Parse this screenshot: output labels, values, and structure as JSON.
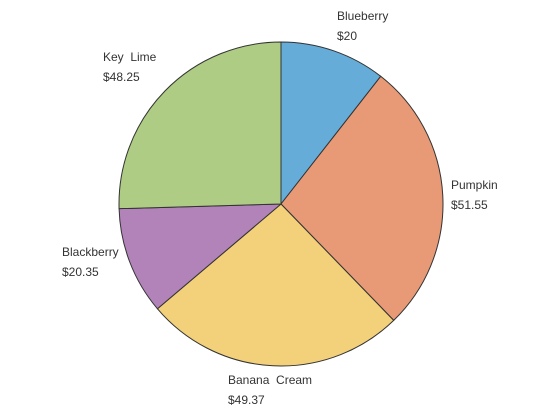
{
  "chart_data": {
    "type": "pie",
    "title": "",
    "currency_prefix": "$",
    "slices": [
      {
        "name": "Blueberry",
        "value": 20,
        "display_value": "$20",
        "color": "#65acd9"
      },
      {
        "name": "Pumpkin",
        "value": 51.55,
        "display_value": "$51.55",
        "color": "#e89a77"
      },
      {
        "name": "Banana  Cream",
        "value": 49.37,
        "display_value": "$49.37",
        "color": "#f3d07a"
      },
      {
        "name": "Blackberry",
        "value": 20.35,
        "display_value": "$20.35",
        "color": "#b283b9"
      },
      {
        "name": "Key  Lime",
        "value": 48.25,
        "display_value": "$48.25",
        "color": "#aecc84"
      }
    ],
    "start_angle": "12 o'clock",
    "direction": "clockwise",
    "slice_border_color": "#333333",
    "legend": "none"
  }
}
